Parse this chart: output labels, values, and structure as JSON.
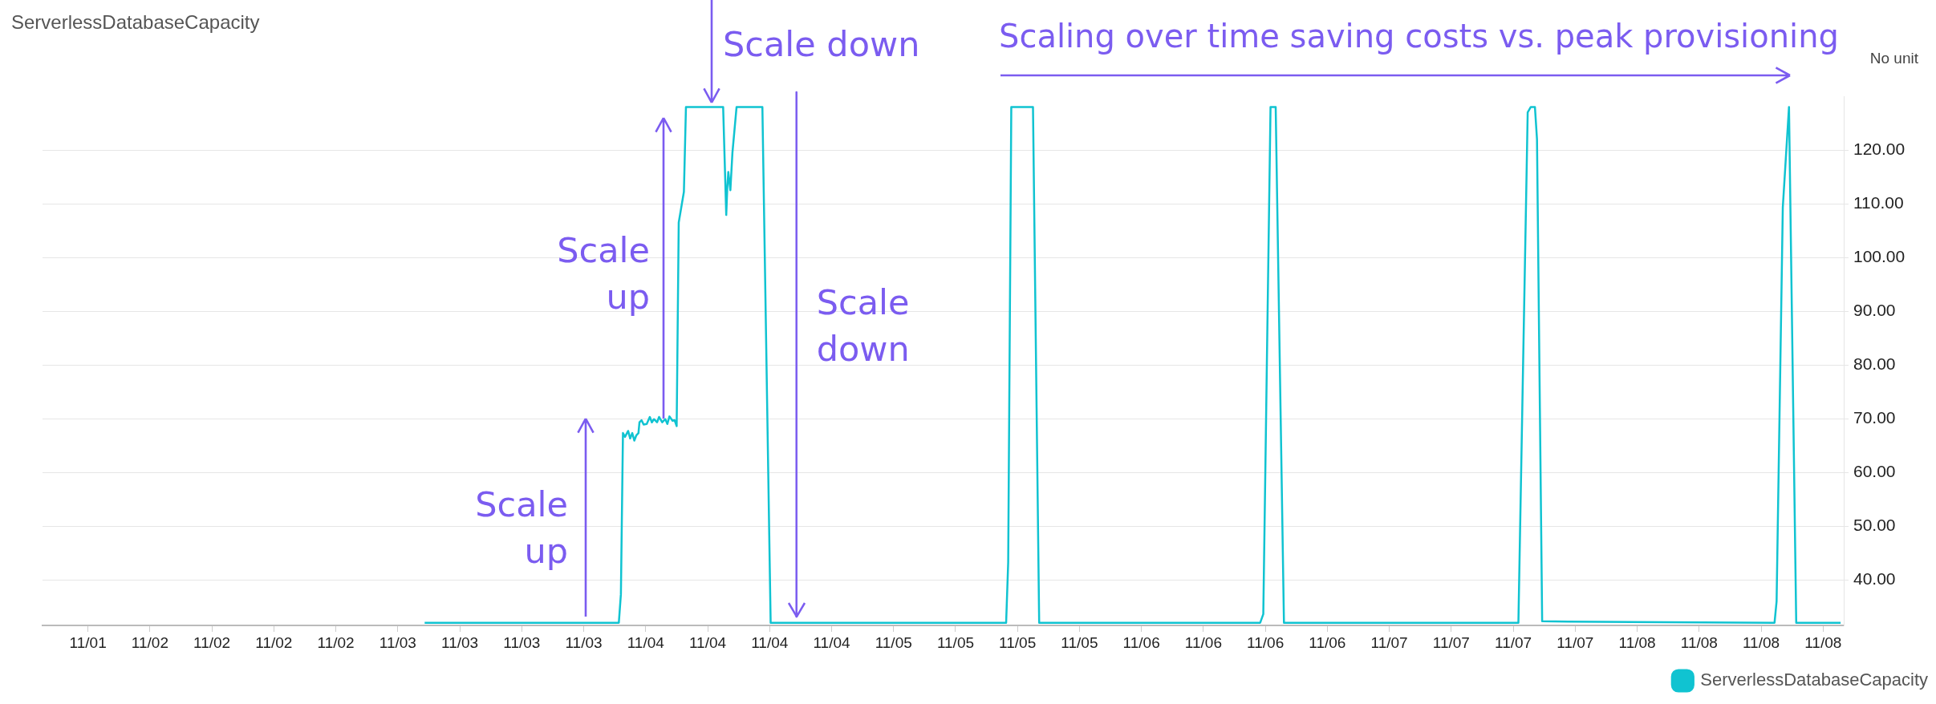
{
  "chart_data": {
    "type": "line",
    "title": "ServerlessDatabaseCapacity",
    "ylabel": "No unit",
    "annotations": [
      "Scale down",
      "Scale up",
      "Scale up",
      "Scaling over time saving costs vs. peak provisioning"
    ],
    "ref_lines": [
      {
        "axis": "x",
        "value": "--11-04T14:36",
        "label": "Scale down",
        "color": "#7b5cf0"
      }
    ],
    "series": [
      {
        "name": "ServerlessDatabaseCapacity",
        "color": "#10c3d1",
        "x": [
          "--11-03T02:36",
          "--11-03T21:24",
          "--11-03T21:36",
          "--11-03T21:48",
          "--11-03T22:00",
          "--11-03T22:18",
          "--11-03T22:30",
          "--11-03T22:42",
          "--11-03T22:54",
          "--11-03T23:06",
          "--11-03T23:18",
          "--11-03T23:24",
          "--11-03T23:36",
          "--11-03T23:48",
          "--11-04T00:06",
          "--11-04T00:24",
          "--11-04T00:36",
          "--11-04T00:48",
          "--11-04T01:06",
          "--11-04T01:18",
          "--11-04T01:36",
          "--11-04T01:54",
          "--11-04T02:06",
          "--11-04T02:18",
          "--11-04T02:36",
          "--11-04T02:48",
          "--11-04T03:00",
          "--11-04T03:12",
          "--11-04T03:42",
          "--11-04T03:54",
          "--11-04T07:30",
          "--11-04T07:48",
          "--11-04T07:54",
          "--11-04T08:00",
          "--11-04T08:12",
          "--11-04T08:24",
          "--11-04T08:48",
          "--11-04T11:18",
          "--11-04T12:06",
          "--11-05T10:54",
          "--11-05T11:06",
          "--11-05T11:24",
          "--11-05T13:30",
          "--11-05T14:06",
          "--11-06T11:30",
          "--11-06T11:48",
          "--11-06T12:30",
          "--11-06T13:00",
          "--11-06T13:48",
          "--11-07T12:30",
          "--11-07T13:24",
          "--11-07T13:42",
          "--11-07T14:06",
          "--11-07T14:18",
          "--11-07T14:48",
          "--11-07T17:18",
          "--11-08T13:18",
          "--11-08T13:30",
          "--11-08T14:06",
          "--11-08T14:42",
          "--11-08T15:24",
          "--11-08T19:42"
        ],
        "values": [
          32,
          32,
          37.3,
          67.3,
          66.6,
          67.7,
          66.3,
          67.3,
          65.9,
          66.9,
          67.3,
          69.3,
          69.7,
          68.9,
          69.0,
          70.3,
          69.3,
          69.9,
          69.3,
          70.3,
          69.3,
          69.9,
          69.0,
          70.4,
          69.6,
          69.7,
          68.6,
          106.5,
          112.2,
          128,
          128,
          107.9,
          112.9,
          115.9,
          112.5,
          119.5,
          128,
          128,
          32,
          32,
          43.2,
          128,
          128,
          32,
          32,
          33.6,
          128,
          128,
          32,
          32,
          127,
          128,
          128,
          122,
          32.3,
          32.2,
          32,
          36,
          109.3,
          128,
          32,
          32
        ]
      }
    ],
    "xlim": [
      "--11-01T13:36",
      "--11-08T20:00"
    ],
    "xticks": [
      {
        "value": "--11-01T18:00",
        "label": "11/01"
      },
      {
        "value": "--11-02T00:00",
        "label": "11/02"
      },
      {
        "value": "--11-02T06:00",
        "label": "11/02"
      },
      {
        "value": "--11-02T12:00",
        "label": "11/02"
      },
      {
        "value": "--11-02T18:00",
        "label": "11/02"
      },
      {
        "value": "--11-03T00:00",
        "label": "11/03"
      },
      {
        "value": "--11-03T06:00",
        "label": "11/03"
      },
      {
        "value": "--11-03T12:00",
        "label": "11/03"
      },
      {
        "value": "--11-03T18:00",
        "label": "11/03"
      },
      {
        "value": "--11-04T00:00",
        "label": "11/04"
      },
      {
        "value": "--11-04T06:00",
        "label": "11/04"
      },
      {
        "value": "--11-04T12:00",
        "label": "11/04"
      },
      {
        "value": "--11-04T18:00",
        "label": "11/04"
      },
      {
        "value": "--11-05T00:00",
        "label": "11/05"
      },
      {
        "value": "--11-05T06:00",
        "label": "11/05"
      },
      {
        "value": "--11-05T12:00",
        "label": "11/05"
      },
      {
        "value": "--11-05T18:00",
        "label": "11/05"
      },
      {
        "value": "--11-06T00:00",
        "label": "11/06"
      },
      {
        "value": "--11-06T06:00",
        "label": "11/06"
      },
      {
        "value": "--11-06T12:00",
        "label": "11/06"
      },
      {
        "value": "--11-06T18:00",
        "label": "11/06"
      },
      {
        "value": "--11-07T00:00",
        "label": "11/07"
      },
      {
        "value": "--11-07T06:00",
        "label": "11/07"
      },
      {
        "value": "--11-07T12:00",
        "label": "11/07"
      },
      {
        "value": "--11-07T18:00",
        "label": "11/07"
      },
      {
        "value": "--11-08T00:00",
        "label": "11/08"
      },
      {
        "value": "--11-08T06:00",
        "label": "11/08"
      },
      {
        "value": "--11-08T12:00",
        "label": "11/08"
      },
      {
        "value": "--11-08T18:00",
        "label": "11/08"
      }
    ],
    "ylim": [
      31.5,
      130
    ],
    "yticks": [
      {
        "value": 40,
        "label": "40.00"
      },
      {
        "value": 50,
        "label": "50.00"
      },
      {
        "value": 60,
        "label": "60.00"
      },
      {
        "value": 70,
        "label": "70.00"
      },
      {
        "value": 80,
        "label": "80.00"
      },
      {
        "value": 90,
        "label": "90.00"
      },
      {
        "value": 100,
        "label": "100.00"
      },
      {
        "value": 110,
        "label": "110.00"
      },
      {
        "value": 120,
        "label": "120.00"
      }
    ],
    "grid": "y",
    "legend": "bottom right",
    "marker": "none",
    "line_style": "solid"
  }
}
